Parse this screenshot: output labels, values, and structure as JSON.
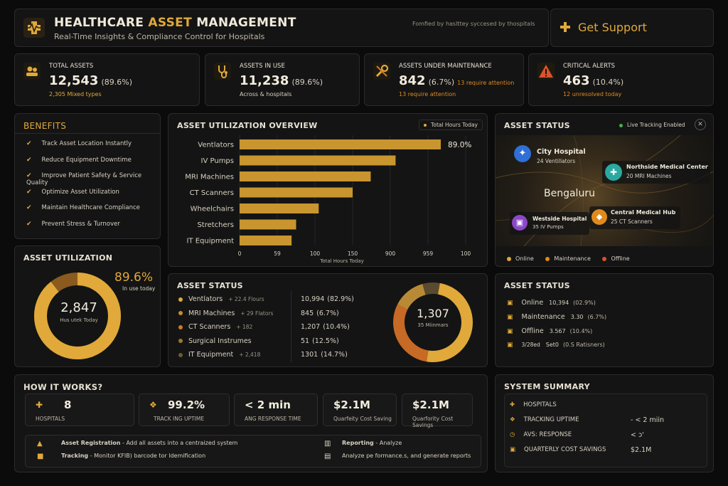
{
  "header": {
    "title_a": "HEALTHCARE ",
    "title_b": "ASSET ",
    "title_c": "MANAGEMENT",
    "subtitle": "Real-Time Insights & Compliance Control for Hospitals",
    "note": "Fomfied by haslttey syccesed by thospitals",
    "support_label": "Get Support"
  },
  "kpis": [
    {
      "label": "TOTAL ASSETS",
      "value": "12,543",
      "pct": "(89.6%)",
      "sub": "2,305  Mixed types",
      "icon": "users-icon"
    },
    {
      "label": "ASSETS IN USE",
      "value": "11,238",
      "pct": "(89.6%)",
      "sub": "Across & hospitals",
      "icon": "stethoscope-icon"
    },
    {
      "label": "ASSETS UNDER MAINTENANCE",
      "value": "842",
      "pct": "(6.7%)",
      "pct_note": "13 require attention",
      "sub": "13 require attention",
      "icon": "wrench-icon"
    },
    {
      "label": "CRITICAL ALERTS",
      "value": "463",
      "pct": "(10.4%)",
      "sub": "12 unresolved today",
      "icon": "warning-icon"
    }
  ],
  "benefits": {
    "title": "BENEFITS",
    "items": [
      "Track Asset Location Instantly",
      "Reduce Equipment Downtime",
      "Improve Patient Safety & Service Quality",
      "Optimize Asset Utilization",
      "Maintain Healthcare Compliance",
      "Prevent Stress & Turnover"
    ]
  },
  "utilization": {
    "title": "ASSET UTILIZATION",
    "center_value": "2,847",
    "center_label": "Hus utek Today",
    "pct": "89.6%",
    "pct_label": "In use today"
  },
  "overview": {
    "title": "ASSET UTILIZATION OVERVIEW",
    "legend": "Total Hours Today",
    "top_label": "89.0%",
    "xlabel": "Total Hours Today",
    "ticks": [
      "0",
      "59",
      "100",
      "150",
      "900",
      "959",
      "100"
    ]
  },
  "chart_data": {
    "type": "bar",
    "orientation": "horizontal",
    "categories": [
      "Ventlators",
      "IV Pumps",
      "MRI Machines",
      "CT Scanners",
      "Wheelchairs",
      "Stretchers",
      "IT Equipment"
    ],
    "values": [
      89,
      69,
      58,
      50,
      35,
      25,
      23
    ],
    "xlabel": "Total Hours Today",
    "xlim": [
      0,
      100
    ],
    "grid": true
  },
  "map": {
    "title": "ASSET STATUS",
    "live": "Live Tracking Enabled",
    "city": "Bengaluru",
    "markers": [
      {
        "name": "City Hospital",
        "sub": "24 Ventillators",
        "color": "#2f6fd6",
        "icon": "snowflake-icon"
      },
      {
        "name": "Northside Medical Center",
        "sub": "20 MRI Machines",
        "color": "#2aa9a0",
        "icon": "medical-icon"
      },
      {
        "name": "Westside Hospital",
        "sub": "35 IV Pumps",
        "color": "#8b47c8",
        "icon": "lock-icon"
      },
      {
        "name": "Central Medical Hub",
        "sub": "25 CT Scanners",
        "color": "#e08a1e",
        "icon": "shield-icon"
      }
    ],
    "legend": [
      {
        "label": "Online",
        "color": "#e0a93a"
      },
      {
        "label": "Maintenance",
        "color": "#e08a1e"
      },
      {
        "label": "Offline",
        "color": "#d9532c"
      }
    ]
  },
  "status_mid": {
    "title": "ASSET STATUS",
    "rows": [
      {
        "name": "Ventlators",
        "delta": "+ 22.4  Flours",
        "value": "10,994",
        "pct": "(82.9%)",
        "color": "#e0a93a"
      },
      {
        "name": "MRI Machines",
        "delta": "+ 29  Flators",
        "value": "845",
        "pct": "(6.7%)",
        "color": "#c98a2a"
      },
      {
        "name": "CT Scanners",
        "delta": "+ 182",
        "value": "1,207",
        "pct": "(10.4%)",
        "color": "#d07a24"
      },
      {
        "name": "Surgical Instrumes",
        "delta": "",
        "value": "51",
        "pct": "(12.5%)",
        "color": "#a0782a"
      },
      {
        "name": "IT Equipment",
        "delta": "+ 2,418",
        "value": "1301",
        "pct": "(14.7%)",
        "color": "#6e5a36"
      }
    ],
    "donut_value": "1,307",
    "donut_label": "35 Miinmars"
  },
  "status_right": {
    "title": "ASSET STATUS",
    "rows": [
      {
        "label": "Online",
        "value": "10,394",
        "pct": "(02.9%)"
      },
      {
        "label": "Maintenance",
        "value": "3.30",
        "pct": "(6.7%)"
      },
      {
        "label": "Offline",
        "value": "3.567",
        "pct": "(10.4%)"
      },
      {
        "label": "3/28ed",
        "value": "Set0",
        "pct": "(0.S Ratisners)"
      }
    ]
  },
  "how": {
    "title": "HOW IT WORKS?",
    "stats": [
      {
        "value": "8",
        "label": "HOSPITALS"
      },
      {
        "value": "99.2%",
        "label": "TRACK ING UPTIME"
      },
      {
        "value": "< 2 min",
        "label": "ANG RESPONSE TIME"
      },
      {
        "value": "$2.1M",
        "label": "Quarfeity Cost Saving"
      },
      {
        "value": "$2.1M",
        "label": "Quarfority Cost Savings"
      }
    ],
    "steps": [
      {
        "name": "Asset Registration",
        "desc": "- Add all assets into a centraized system"
      },
      {
        "name": "Tracking",
        "desc": "- Monitor KFIB) barcode tor ldemification"
      },
      {
        "name": "Reporting",
        "desc": "- Analyze"
      },
      {
        "name": "",
        "desc": "Analyze pe formance.s, and generate reports"
      }
    ]
  },
  "summary": {
    "title": "SYSTEM SUMMARY",
    "rows": [
      {
        "label": "HOSPITALS",
        "value": ""
      },
      {
        "label": "TRACKING UPTIME",
        "value": "- < 2 miin"
      },
      {
        "label": "AVS: RESPONSE",
        "value": "< ɔ'"
      },
      {
        "label": "QUARTERLY COST SAVINGS",
        "value": "$2.1M"
      }
    ]
  }
}
